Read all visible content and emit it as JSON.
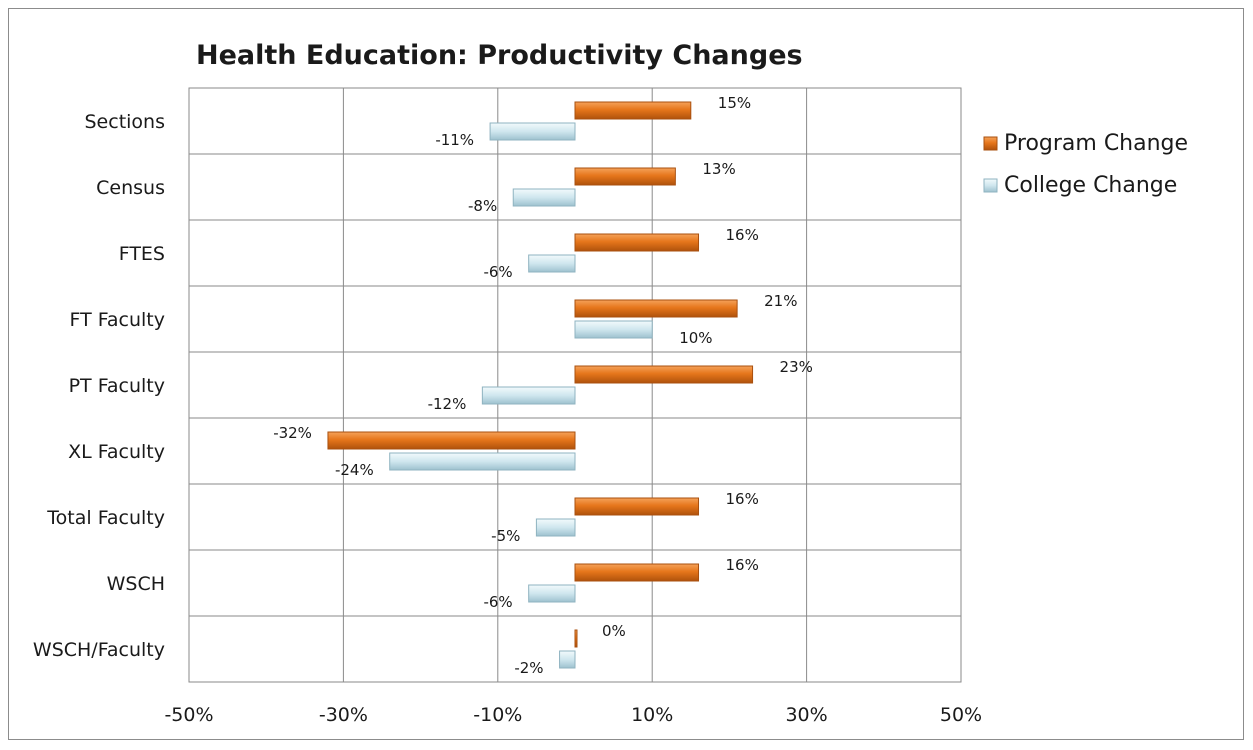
{
  "chart_data": {
    "type": "bar",
    "orientation": "horizontal",
    "title": "Health Education: Productivity Changes",
    "categories": [
      "Sections",
      "Census",
      "FTES",
      "FT Faculty",
      "PT Faculty",
      "XL Faculty",
      "Total Faculty",
      "WSCH",
      "WSCH/Faculty"
    ],
    "series": [
      {
        "name": "Program Change",
        "color": "#e6761b",
        "values": [
          15,
          13,
          16,
          21,
          23,
          -32,
          16,
          16,
          0
        ],
        "labels": [
          "15%",
          "13%",
          "16%",
          "21%",
          "23%",
          "-32%",
          "16%",
          "16%",
          "0%"
        ]
      },
      {
        "name": "College Change",
        "color": "#cfe6ee",
        "values": [
          -11,
          -8,
          -6,
          10,
          -12,
          -24,
          -5,
          -6,
          -2
        ],
        "labels": [
          "-11%",
          "-8%",
          "-6%",
          "10%",
          "-12%",
          "-24%",
          "-5%",
          "-6%",
          "-2%"
        ]
      }
    ],
    "xlim": [
      -50,
      50
    ],
    "xticks": [
      -50,
      -30,
      -10,
      10,
      30,
      50
    ],
    "xtick_labels": [
      "-50%",
      "-30%",
      "-10%",
      "10%",
      "30%",
      "50%"
    ],
    "grid": true,
    "legend": "right"
  }
}
